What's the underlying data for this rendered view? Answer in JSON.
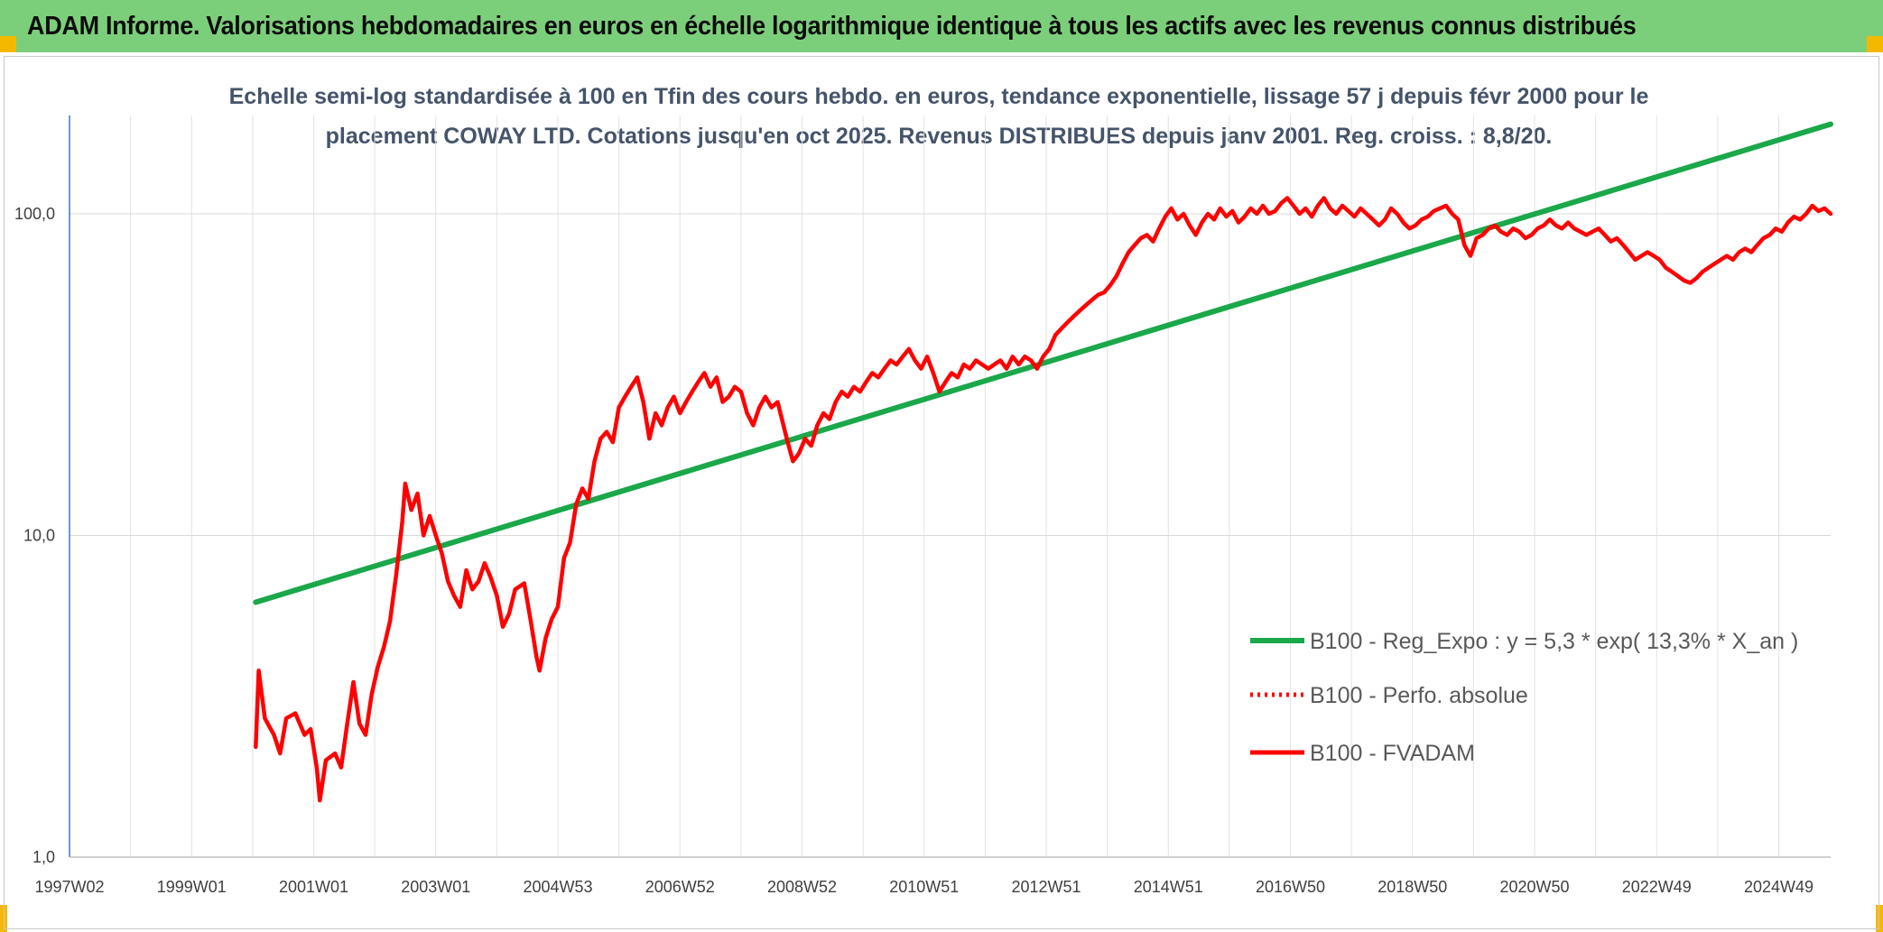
{
  "banner": {
    "title": "ADAM Informe. Valorisations hebdomadaires en euros en échelle logarithmique identique à tous les actifs avec les revenus connus distribués"
  },
  "chart_data": {
    "type": "line",
    "title_lines": [
      "Echelle semi-log standardisée à 100 en Tfin des cours hebdo. en euros, tendance exponentielle, lissage 57 j depuis févr 2000 pour le",
      "placement COWAY LTD. Cotations jusqu'en oct 2025. Revenus DISTRIBUES depuis janv 2001. Reg. croiss. : 8,8/20."
    ],
    "y_scale": "log",
    "ylim": [
      1,
      200
    ],
    "y_ticks": [
      {
        "value": 1,
        "label": "1,0"
      },
      {
        "value": 10,
        "label": "10,0"
      },
      {
        "value": 100,
        "label": "100,0"
      }
    ],
    "x_range": [
      1997.0,
      2025.85
    ],
    "x_ticks": [
      {
        "x": 1997.0,
        "label": "1997W02"
      },
      {
        "x": 1999.0,
        "label": "1999W01"
      },
      {
        "x": 2001.0,
        "label": "2001W01"
      },
      {
        "x": 2003.0,
        "label": "2003W01"
      },
      {
        "x": 2005.0,
        "label": "2004W53"
      },
      {
        "x": 2007.0,
        "label": "2006W52"
      },
      {
        "x": 2009.0,
        "label": "2008W52"
      },
      {
        "x": 2011.0,
        "label": "2010W51"
      },
      {
        "x": 2013.0,
        "label": "2012W51"
      },
      {
        "x": 2015.0,
        "label": "2014W51"
      },
      {
        "x": 2017.0,
        "label": "2016W50"
      },
      {
        "x": 2019.0,
        "label": "2018W50"
      },
      {
        "x": 2021.0,
        "label": "2020W50"
      },
      {
        "x": 2023.0,
        "label": "2022W49"
      },
      {
        "x": 2025.0,
        "label": "2024W49"
      }
    ],
    "grid": true,
    "legend_position": "right",
    "series": [
      {
        "name": "B100 - Reg_Expo : y = 5,3 * exp( 13,3% *  X_an )",
        "color": "#1aa84a",
        "style": "solid",
        "points": [
          [
            2000.05,
            6.2
          ],
          [
            2025.85,
            190
          ]
        ]
      },
      {
        "name": "B100 - Perfo. absolue",
        "color": "#ff0000",
        "style": "dotted",
        "points": []
      },
      {
        "name": "B100 - FVADAM",
        "color": "#ff0000",
        "style": "solid",
        "points": [
          [
            2000.05,
            2.2
          ],
          [
            2000.1,
            3.8
          ],
          [
            2000.2,
            2.7
          ],
          [
            2000.35,
            2.4
          ],
          [
            2000.45,
            2.1
          ],
          [
            2000.55,
            2.7
          ],
          [
            2000.7,
            2.8
          ],
          [
            2000.85,
            2.4
          ],
          [
            2000.95,
            2.5
          ],
          [
            2001.05,
            1.9
          ],
          [
            2001.1,
            1.5
          ],
          [
            2001.2,
            2.0
          ],
          [
            2001.35,
            2.1
          ],
          [
            2001.45,
            1.9
          ],
          [
            2001.55,
            2.6
          ],
          [
            2001.65,
            3.5
          ],
          [
            2001.75,
            2.6
          ],
          [
            2001.85,
            2.4
          ],
          [
            2001.95,
            3.2
          ],
          [
            2002.05,
            3.9
          ],
          [
            2002.15,
            4.5
          ],
          [
            2002.25,
            5.4
          ],
          [
            2002.35,
            7.5
          ],
          [
            2002.45,
            11.0
          ],
          [
            2002.5,
            14.5
          ],
          [
            2002.6,
            12.0
          ],
          [
            2002.7,
            13.5
          ],
          [
            2002.8,
            10.0
          ],
          [
            2002.9,
            11.5
          ],
          [
            2003.0,
            10.0
          ],
          [
            2003.1,
            8.8
          ],
          [
            2003.2,
            7.2
          ],
          [
            2003.3,
            6.5
          ],
          [
            2003.4,
            6.0
          ],
          [
            2003.5,
            7.8
          ],
          [
            2003.6,
            6.8
          ],
          [
            2003.7,
            7.2
          ],
          [
            2003.8,
            8.2
          ],
          [
            2003.9,
            7.4
          ],
          [
            2004.0,
            6.5
          ],
          [
            2004.1,
            5.2
          ],
          [
            2004.2,
            5.7
          ],
          [
            2004.3,
            6.8
          ],
          [
            2004.45,
            7.1
          ],
          [
            2004.55,
            5.5
          ],
          [
            2004.65,
            4.2
          ],
          [
            2004.7,
            3.8
          ],
          [
            2004.8,
            4.8
          ],
          [
            2004.9,
            5.5
          ],
          [
            2005.0,
            6.0
          ],
          [
            2005.1,
            8.5
          ],
          [
            2005.2,
            9.5
          ],
          [
            2005.3,
            12.5
          ],
          [
            2005.4,
            14.0
          ],
          [
            2005.5,
            13.0
          ],
          [
            2005.6,
            17.0
          ],
          [
            2005.7,
            20.0
          ],
          [
            2005.8,
            21.0
          ],
          [
            2005.9,
            19.5
          ],
          [
            2006.0,
            25.0
          ],
          [
            2006.1,
            27.0
          ],
          [
            2006.2,
            29.0
          ],
          [
            2006.3,
            31.0
          ],
          [
            2006.4,
            26.0
          ],
          [
            2006.5,
            20.0
          ],
          [
            2006.6,
            24.0
          ],
          [
            2006.7,
            22.0
          ],
          [
            2006.8,
            25.0
          ],
          [
            2006.9,
            27.0
          ],
          [
            2007.0,
            24.0
          ],
          [
            2007.1,
            26.0
          ],
          [
            2007.2,
            28.0
          ],
          [
            2007.3,
            30.0
          ],
          [
            2007.4,
            32.0
          ],
          [
            2007.5,
            29.0
          ],
          [
            2007.6,
            31.0
          ],
          [
            2007.7,
            26.0
          ],
          [
            2007.8,
            27.0
          ],
          [
            2007.9,
            29.0
          ],
          [
            2008.0,
            28.0
          ],
          [
            2008.1,
            24.0
          ],
          [
            2008.2,
            22.0
          ],
          [
            2008.3,
            25.0
          ],
          [
            2008.4,
            27.0
          ],
          [
            2008.5,
            25.0
          ],
          [
            2008.6,
            26.0
          ],
          [
            2008.75,
            20.0
          ],
          [
            2008.85,
            17.0
          ],
          [
            2008.95,
            18.0
          ],
          [
            2009.05,
            20.0
          ],
          [
            2009.15,
            19.0
          ],
          [
            2009.25,
            22.0
          ],
          [
            2009.35,
            24.0
          ],
          [
            2009.45,
            23.0
          ],
          [
            2009.55,
            26.0
          ],
          [
            2009.65,
            28.0
          ],
          [
            2009.75,
            27.0
          ],
          [
            2009.85,
            29.0
          ],
          [
            2009.95,
            28.0
          ],
          [
            2010.05,
            30.0
          ],
          [
            2010.15,
            32.0
          ],
          [
            2010.25,
            31.0
          ],
          [
            2010.35,
            33.0
          ],
          [
            2010.45,
            35.0
          ],
          [
            2010.55,
            34.0
          ],
          [
            2010.65,
            36.0
          ],
          [
            2010.75,
            38.0
          ],
          [
            2010.85,
            35.0
          ],
          [
            2010.95,
            33.0
          ],
          [
            2011.05,
            36.0
          ],
          [
            2011.15,
            32.0
          ],
          [
            2011.25,
            28.0
          ],
          [
            2011.35,
            30.0
          ],
          [
            2011.45,
            32.0
          ],
          [
            2011.55,
            31.0
          ],
          [
            2011.65,
            34.0
          ],
          [
            2011.75,
            33.0
          ],
          [
            2011.85,
            35.0
          ],
          [
            2011.95,
            34.0
          ],
          [
            2012.05,
            33.0
          ],
          [
            2012.15,
            34.0
          ],
          [
            2012.25,
            35.0
          ],
          [
            2012.35,
            33.0
          ],
          [
            2012.45,
            36.0
          ],
          [
            2012.55,
            34.0
          ],
          [
            2012.65,
            36.0
          ],
          [
            2012.75,
            35.0
          ],
          [
            2012.85,
            33.0
          ],
          [
            2012.95,
            36.0
          ],
          [
            2013.05,
            38.0
          ],
          [
            2013.15,
            42.0
          ],
          [
            2013.25,
            44.0
          ],
          [
            2013.35,
            46.0
          ],
          [
            2013.45,
            48.0
          ],
          [
            2013.55,
            50.0
          ],
          [
            2013.65,
            52.0
          ],
          [
            2013.75,
            54.0
          ],
          [
            2013.85,
            56.0
          ],
          [
            2013.95,
            57.0
          ],
          [
            2014.05,
            60.0
          ],
          [
            2014.15,
            64.0
          ],
          [
            2014.25,
            70.0
          ],
          [
            2014.35,
            76.0
          ],
          [
            2014.45,
            80.0
          ],
          [
            2014.55,
            84.0
          ],
          [
            2014.65,
            86.0
          ],
          [
            2014.75,
            82.0
          ],
          [
            2014.85,
            90.0
          ],
          [
            2014.95,
            98.0
          ],
          [
            2015.05,
            104.0
          ],
          [
            2015.15,
            96.0
          ],
          [
            2015.25,
            100.0
          ],
          [
            2015.35,
            92.0
          ],
          [
            2015.45,
            86.0
          ],
          [
            2015.55,
            94.0
          ],
          [
            2015.65,
            100.0
          ],
          [
            2015.75,
            96.0
          ],
          [
            2015.85,
            104.0
          ],
          [
            2015.95,
            98.0
          ],
          [
            2016.05,
            102.0
          ],
          [
            2016.15,
            94.0
          ],
          [
            2016.25,
            98.0
          ],
          [
            2016.35,
            104.0
          ],
          [
            2016.45,
            100.0
          ],
          [
            2016.55,
            106.0
          ],
          [
            2016.65,
            100.0
          ],
          [
            2016.75,
            102.0
          ],
          [
            2016.85,
            108.0
          ],
          [
            2016.95,
            112.0
          ],
          [
            2017.05,
            106.0
          ],
          [
            2017.15,
            100.0
          ],
          [
            2017.25,
            104.0
          ],
          [
            2017.35,
            98.0
          ],
          [
            2017.45,
            106.0
          ],
          [
            2017.55,
            112.0
          ],
          [
            2017.65,
            104.0
          ],
          [
            2017.75,
            100.0
          ],
          [
            2017.85,
            106.0
          ],
          [
            2017.95,
            102.0
          ],
          [
            2018.05,
            98.0
          ],
          [
            2018.15,
            104.0
          ],
          [
            2018.25,
            100.0
          ],
          [
            2018.35,
            96.0
          ],
          [
            2018.45,
            92.0
          ],
          [
            2018.55,
            96.0
          ],
          [
            2018.65,
            104.0
          ],
          [
            2018.75,
            100.0
          ],
          [
            2018.85,
            94.0
          ],
          [
            2018.95,
            90.0
          ],
          [
            2019.05,
            92.0
          ],
          [
            2019.15,
            96.0
          ],
          [
            2019.25,
            98.0
          ],
          [
            2019.35,
            102.0
          ],
          [
            2019.45,
            104.0
          ],
          [
            2019.55,
            106.0
          ],
          [
            2019.65,
            100.0
          ],
          [
            2019.75,
            96.0
          ],
          [
            2019.85,
            80.0
          ],
          [
            2019.95,
            74.0
          ],
          [
            2020.05,
            84.0
          ],
          [
            2020.15,
            86.0
          ],
          [
            2020.25,
            90.0
          ],
          [
            2020.35,
            92.0
          ],
          [
            2020.45,
            88.0
          ],
          [
            2020.55,
            86.0
          ],
          [
            2020.65,
            90.0
          ],
          [
            2020.75,
            88.0
          ],
          [
            2020.85,
            84.0
          ],
          [
            2020.95,
            86.0
          ],
          [
            2021.05,
            90.0
          ],
          [
            2021.15,
            92.0
          ],
          [
            2021.25,
            96.0
          ],
          [
            2021.35,
            92.0
          ],
          [
            2021.45,
            90.0
          ],
          [
            2021.55,
            94.0
          ],
          [
            2021.65,
            90.0
          ],
          [
            2021.75,
            88.0
          ],
          [
            2021.85,
            86.0
          ],
          [
            2021.95,
            88.0
          ],
          [
            2022.05,
            90.0
          ],
          [
            2022.15,
            86.0
          ],
          [
            2022.25,
            82.0
          ],
          [
            2022.35,
            84.0
          ],
          [
            2022.45,
            80.0
          ],
          [
            2022.55,
            76.0
          ],
          [
            2022.65,
            72.0
          ],
          [
            2022.75,
            74.0
          ],
          [
            2022.85,
            76.0
          ],
          [
            2022.95,
            74.0
          ],
          [
            2023.05,
            72.0
          ],
          [
            2023.15,
            68.0
          ],
          [
            2023.25,
            66.0
          ],
          [
            2023.35,
            64.0
          ],
          [
            2023.45,
            62.0
          ],
          [
            2023.55,
            61.0
          ],
          [
            2023.65,
            63.0
          ],
          [
            2023.75,
            66.0
          ],
          [
            2023.85,
            68.0
          ],
          [
            2023.95,
            70.0
          ],
          [
            2024.05,
            72.0
          ],
          [
            2024.15,
            74.0
          ],
          [
            2024.25,
            72.0
          ],
          [
            2024.35,
            76.0
          ],
          [
            2024.45,
            78.0
          ],
          [
            2024.55,
            76.0
          ],
          [
            2024.65,
            80.0
          ],
          [
            2024.75,
            84.0
          ],
          [
            2024.85,
            86.0
          ],
          [
            2024.95,
            90.0
          ],
          [
            2025.05,
            88.0
          ],
          [
            2025.15,
            94.0
          ],
          [
            2025.25,
            98.0
          ],
          [
            2025.35,
            96.0
          ],
          [
            2025.45,
            100.0
          ],
          [
            2025.55,
            106.0
          ],
          [
            2025.65,
            102.0
          ],
          [
            2025.75,
            104.0
          ],
          [
            2025.85,
            100.0
          ]
        ]
      }
    ]
  }
}
